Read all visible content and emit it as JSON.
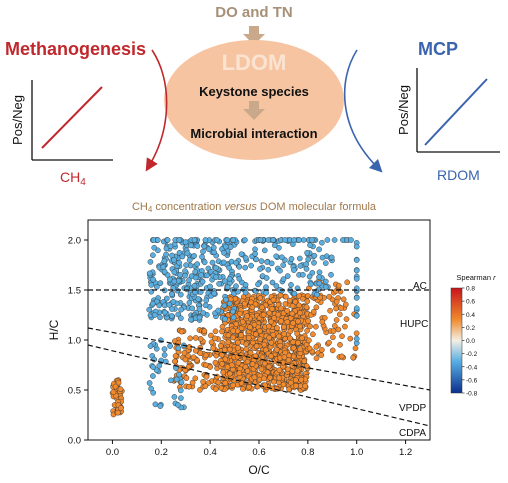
{
  "diagram": {
    "top_label": "DO and TN",
    "center_title": "LDOM",
    "center_line1": "Keystone species",
    "center_line2": "Microbial interaction",
    "left": {
      "title": "Methanogenesis",
      "y_label": "Pos/Neg",
      "x_label": "CH",
      "x_label_sub": "4",
      "color": "#c0282d"
    },
    "right": {
      "title": "MCP",
      "y_label": "Pos/Neg",
      "x_label": "RDOM",
      "color": "#3a64ad"
    },
    "ellipse_color": "#f6c4a0",
    "arrow_color": "#c9a98a",
    "top_label_color": "#a89078"
  },
  "chart_data": {
    "type": "scatter",
    "title_pre": "CH",
    "title_sub": "4",
    "title_mid": " concentration ",
    "title_em": "versus",
    "title_post": " DOM molecular formula",
    "xlabel": "O/C",
    "ylabel": "H/C",
    "xlim": [
      -0.1,
      1.3
    ],
    "ylim": [
      0.0,
      2.2
    ],
    "xticks": [
      "0.0",
      "0.2",
      "0.4",
      "0.6",
      "0.8",
      "1.0",
      "1.2"
    ],
    "yticks": [
      "0.0",
      "0.5",
      "1.0",
      "1.5",
      "2.0"
    ],
    "region_labels": [
      "AC",
      "HUPC",
      "VPDP",
      "CDPA"
    ],
    "colorbar": {
      "title": "Spearman r",
      "ticks": [
        "0.8",
        "0.6",
        "0.4",
        "0.2",
        "0.0",
        "-0.2",
        "-0.4",
        "-0.6",
        "-0.8"
      ],
      "range": [
        -0.8,
        0.8
      ]
    },
    "boundaries": [
      {
        "name": "AC",
        "x": [
          -0.1,
          1.3
        ],
        "y": [
          1.5,
          1.5
        ]
      },
      {
        "name": "VPDP",
        "x": [
          -0.1,
          1.3
        ],
        "y": [
          1.12,
          0.5
        ]
      },
      {
        "name": "CDPA",
        "x": [
          -0.1,
          1.3
        ],
        "y": [
          0.95,
          0.14
        ]
      }
    ],
    "clusters": [
      {
        "series": "positive",
        "color": "#f28a2e",
        "x": [
          0.45,
          0.8
        ],
        "y": [
          0.5,
          1.45
        ],
        "n": 900
      },
      {
        "series": "positive",
        "color": "#f28a2e",
        "x": [
          0.25,
          0.45
        ],
        "y": [
          0.5,
          1.1
        ],
        "n": 120
      },
      {
        "series": "positive",
        "color": "#f28a2e",
        "x": [
          0.8,
          1.0
        ],
        "y": [
          0.8,
          1.6
        ],
        "n": 80
      },
      {
        "series": "positive",
        "color": "#f28a2e",
        "x": [
          0.0,
          0.04
        ],
        "y": [
          0.25,
          0.6
        ],
        "n": 40
      },
      {
        "series": "negative",
        "color": "#5aaee0",
        "x": [
          0.15,
          0.5
        ],
        "y": [
          1.2,
          2.0
        ],
        "n": 300
      },
      {
        "series": "negative",
        "color": "#5aaee0",
        "x": [
          0.5,
          0.9
        ],
        "y": [
          1.45,
          2.0
        ],
        "n": 120
      },
      {
        "series": "negative",
        "color": "#5aaee0",
        "x": [
          0.15,
          0.3
        ],
        "y": [
          0.3,
          1.0
        ],
        "n": 40
      },
      {
        "series": "row",
        "color": "#5aaee0",
        "x": [
          0.15,
          1.0
        ],
        "y": [
          2.0,
          2.0
        ],
        "n": 60
      },
      {
        "series": "column",
        "color": "#5aaee0",
        "x": [
          1.0,
          1.0
        ],
        "y": [
          0.8,
          2.0
        ],
        "n": 20
      }
    ]
  }
}
